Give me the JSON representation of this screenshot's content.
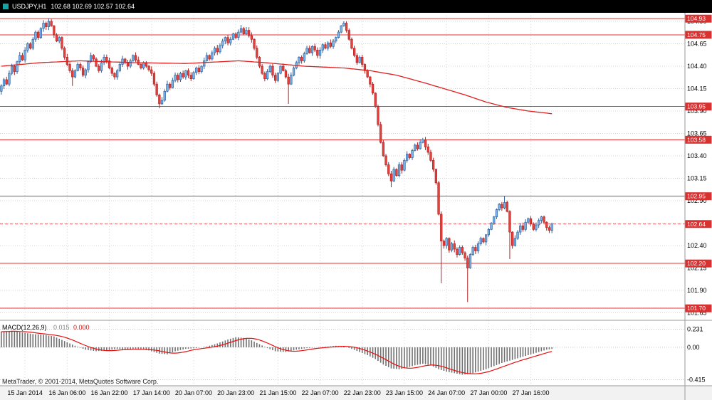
{
  "title_bar": {
    "symbol": "USDJPY,H1",
    "ohlc_values": "102.68 102.69 102.57 102.64"
  },
  "price_axis": {
    "ticks": [
      "104.90",
      "104.65",
      "104.40",
      "104.15",
      "103.90",
      "103.65",
      "103.40",
      "103.15",
      "102.90",
      "102.65",
      "102.40",
      "102.15",
      "101.90",
      "101.65"
    ],
    "sr_boxes": [
      "104.93",
      "104.75",
      "103.95",
      "103.58",
      "102.95",
      "102.20",
      "101.70"
    ],
    "current_price_box": "102.64"
  },
  "time_axis": {
    "labels": [
      "15 Jan 2014",
      "16 Jan 06:00",
      "16 Jan 22:00",
      "17 Jan 14:00",
      "20 Jan 07:00",
      "20 Jan 23:00",
      "21 Jan 15:00",
      "22 Jan 07:00",
      "22 Jan 23:00",
      "23 Jan 15:00",
      "24 Jan 07:00",
      "27 Jan 00:00",
      "27 Jan 16:00"
    ],
    "grid_bar_indices": [
      9,
      25,
      41,
      57,
      73,
      89,
      105,
      121,
      137,
      153,
      169,
      185,
      201
    ]
  },
  "macd_panel": {
    "label": "MACD(12,26,9)",
    "main_value": "0.015",
    "signal_value": "0.000",
    "axis_labels": [
      "0.231",
      "0.00",
      "-0.415"
    ],
    "axis_values": [
      0.231,
      0.0,
      -0.415
    ]
  },
  "footer": {
    "copyright": "MetaTrader, © 2001-2014, MetaQuotes Software Corp."
  },
  "colors": {
    "bull_fill": "#7eb6e8",
    "bull_border": "#2f5f9e",
    "bear_fill": "#e8413c",
    "bear_border": "#b22222",
    "ma_line": "#e02020",
    "sr_line": "#e83030",
    "grid": "#d4d4d4",
    "axis_text": "#000000",
    "price_box_bg": "#d93030",
    "price_box_text": "#ffffff",
    "macd_bar": "#707070",
    "macd_signal": "#e81010",
    "separator": "#9a9a9a",
    "time_strip_bg": "#f2f2f2"
  },
  "chart_data": {
    "type": "candlestick",
    "symbol": "USDJPY",
    "timeframe": "H1",
    "title": "USDJPY,H1",
    "ohlc_display": {
      "open": "102.68",
      "high": "102.69",
      "low": "102.57",
      "close": "102.64"
    },
    "bars": 210,
    "grid_every_bars": 16,
    "price_axis_top": 104.9,
    "price_axis_bottom": 101.65,
    "price_step": 0.25,
    "support_resistance": [
      104.93,
      104.75,
      103.95,
      103.58,
      102.95,
      102.2,
      101.7
    ],
    "current_price": 102.64,
    "first_open": 104.12,
    "closes": [
      104.18,
      104.25,
      104.2,
      104.32,
      104.4,
      104.34,
      104.45,
      104.52,
      104.47,
      104.58,
      104.65,
      104.6,
      104.7,
      104.78,
      104.72,
      104.82,
      104.88,
      104.84,
      104.9,
      104.85,
      104.75,
      104.68,
      104.72,
      104.6,
      104.5,
      104.42,
      104.35,
      104.28,
      104.35,
      104.42,
      104.38,
      104.3,
      104.36,
      104.45,
      104.52,
      104.48,
      104.4,
      104.35,
      104.44,
      104.5,
      104.46,
      104.38,
      104.32,
      104.28,
      104.35,
      104.42,
      104.48,
      104.44,
      104.4,
      104.46,
      104.52,
      104.47,
      104.42,
      104.38,
      104.44,
      104.4,
      104.36,
      104.32,
      104.2,
      104.08,
      103.98,
      104.02,
      104.12,
      104.2,
      104.16,
      104.24,
      104.3,
      104.25,
      104.32,
      104.28,
      104.35,
      104.3,
      104.26,
      104.33,
      104.38,
      104.34,
      104.4,
      104.46,
      104.52,
      104.48,
      104.55,
      104.6,
      104.56,
      104.63,
      104.68,
      104.72,
      104.66,
      104.7,
      104.76,
      104.72,
      104.78,
      104.82,
      104.76,
      104.8,
      104.74,
      104.7,
      104.6,
      104.5,
      104.4,
      104.32,
      104.26,
      104.34,
      104.4,
      104.3,
      104.24,
      104.32,
      104.4,
      104.35,
      104.28,
      104.2,
      104.3,
      104.38,
      104.44,
      104.5,
      104.46,
      104.54,
      104.6,
      104.55,
      104.62,
      104.58,
      104.52,
      104.58,
      104.64,
      104.6,
      104.66,
      104.62,
      104.68,
      104.72,
      104.78,
      104.85,
      104.88,
      104.8,
      104.7,
      104.6,
      104.52,
      104.44,
      104.5,
      104.42,
      104.35,
      104.28,
      104.2,
      104.1,
      103.95,
      103.75,
      103.55,
      103.4,
      103.3,
      103.2,
      103.12,
      103.25,
      103.18,
      103.3,
      103.24,
      103.35,
      103.42,
      103.38,
      103.46,
      103.52,
      103.48,
      103.55,
      103.58,
      103.5,
      103.44,
      103.35,
      103.25,
      103.1,
      102.75,
      102.45,
      102.4,
      102.48,
      102.35,
      102.42,
      102.36,
      102.3,
      102.38,
      102.32,
      102.26,
      102.15,
      102.3,
      102.38,
      102.34,
      102.42,
      102.48,
      102.44,
      102.52,
      102.58,
      102.65,
      102.72,
      102.8,
      102.86,
      102.82,
      102.88,
      102.78,
      102.55,
      102.4,
      102.48,
      102.55,
      102.62,
      102.58,
      102.66,
      102.7,
      102.64,
      102.58,
      102.63,
      102.68,
      102.72,
      102.66,
      102.6,
      102.57,
      102.64
    ],
    "wick_overrides": [
      {
        "i": 18,
        "high": 104.93
      },
      {
        "i": 27,
        "low": 104.18
      },
      {
        "i": 60,
        "low": 103.93
      },
      {
        "i": 91,
        "high": 104.86
      },
      {
        "i": 109,
        "low": 103.98
      },
      {
        "i": 130,
        "high": 104.9
      },
      {
        "i": 148,
        "low": 103.05
      },
      {
        "i": 167,
        "low": 101.98
      },
      {
        "i": 177,
        "low": 101.77
      },
      {
        "i": 191,
        "high": 102.95
      },
      {
        "i": 193,
        "low": 102.25
      }
    ],
    "ma_anchors": [
      [
        0,
        104.4
      ],
      [
        15,
        104.44
      ],
      [
        30,
        104.46
      ],
      [
        50,
        104.44
      ],
      [
        70,
        104.43
      ],
      [
        90,
        104.46
      ],
      [
        100,
        104.44
      ],
      [
        115,
        104.4
      ],
      [
        130,
        104.38
      ],
      [
        140,
        104.35
      ],
      [
        150,
        104.3
      ],
      [
        160,
        104.22
      ],
      [
        168,
        104.15
      ],
      [
        176,
        104.08
      ],
      [
        184,
        104.0
      ],
      [
        192,
        103.94
      ],
      [
        200,
        103.9
      ],
      [
        209,
        103.87
      ]
    ],
    "macd_anchors": [
      [
        0,
        0.2
      ],
      [
        4,
        0.21
      ],
      [
        8,
        0.19
      ],
      [
        12,
        0.17
      ],
      [
        16,
        0.16
      ],
      [
        20,
        0.14
      ],
      [
        24,
        0.08
      ],
      [
        28,
        0.02
      ],
      [
        32,
        -0.03
      ],
      [
        36,
        -0.05
      ],
      [
        40,
        -0.04
      ],
      [
        44,
        -0.02
      ],
      [
        48,
        -0.03
      ],
      [
        52,
        -0.02
      ],
      [
        56,
        -0.04
      ],
      [
        60,
        -0.08
      ],
      [
        63,
        -0.09
      ],
      [
        66,
        -0.05
      ],
      [
        70,
        -0.02
      ],
      [
        74,
        -0.01
      ],
      [
        78,
        0.01
      ],
      [
        82,
        0.05
      ],
      [
        86,
        0.1
      ],
      [
        89,
        0.13
      ],
      [
        92,
        0.12
      ],
      [
        95,
        0.09
      ],
      [
        98,
        0.04
      ],
      [
        101,
        -0.01
      ],
      [
        104,
        -0.05
      ],
      [
        108,
        -0.06
      ],
      [
        112,
        -0.03
      ],
      [
        116,
        -0.01
      ],
      [
        120,
        0.0
      ],
      [
        124,
        0.01
      ],
      [
        127,
        0.02
      ],
      [
        130,
        0.01
      ],
      [
        133,
        -0.02
      ],
      [
        136,
        -0.06
      ],
      [
        139,
        -0.1
      ],
      [
        142,
        -0.15
      ],
      [
        145,
        -0.22
      ],
      [
        148,
        -0.27
      ],
      [
        151,
        -0.28
      ],
      [
        154,
        -0.26
      ],
      [
        157,
        -0.23
      ],
      [
        160,
        -0.21
      ],
      [
        163,
        -0.23
      ],
      [
        166,
        -0.28
      ],
      [
        169,
        -0.31
      ],
      [
        172,
        -0.33
      ],
      [
        175,
        -0.35
      ],
      [
        178,
        -0.34
      ],
      [
        181,
        -0.31
      ],
      [
        184,
        -0.28
      ],
      [
        187,
        -0.24
      ],
      [
        190,
        -0.2
      ],
      [
        193,
        -0.17
      ],
      [
        196,
        -0.14
      ],
      [
        199,
        -0.11
      ],
      [
        202,
        -0.08
      ],
      [
        205,
        -0.05
      ],
      [
        207,
        -0.03
      ],
      [
        209,
        -0.02
      ]
    ],
    "macd_ylim": [
      -0.415,
      0.231
    ],
    "time_labels": [
      "15 Jan 2014",
      "16 Jan 06:00",
      "16 Jan 22:00",
      "17 Jan 14:00",
      "20 Jan 07:00",
      "20 Jan 23:00",
      "21 Jan 15:00",
      "22 Jan 07:00",
      "22 Jan 23:00",
      "23 Jan 15:00",
      "24 Jan 07:00",
      "27 Jan 00:00",
      "27 Jan 16:00"
    ]
  }
}
